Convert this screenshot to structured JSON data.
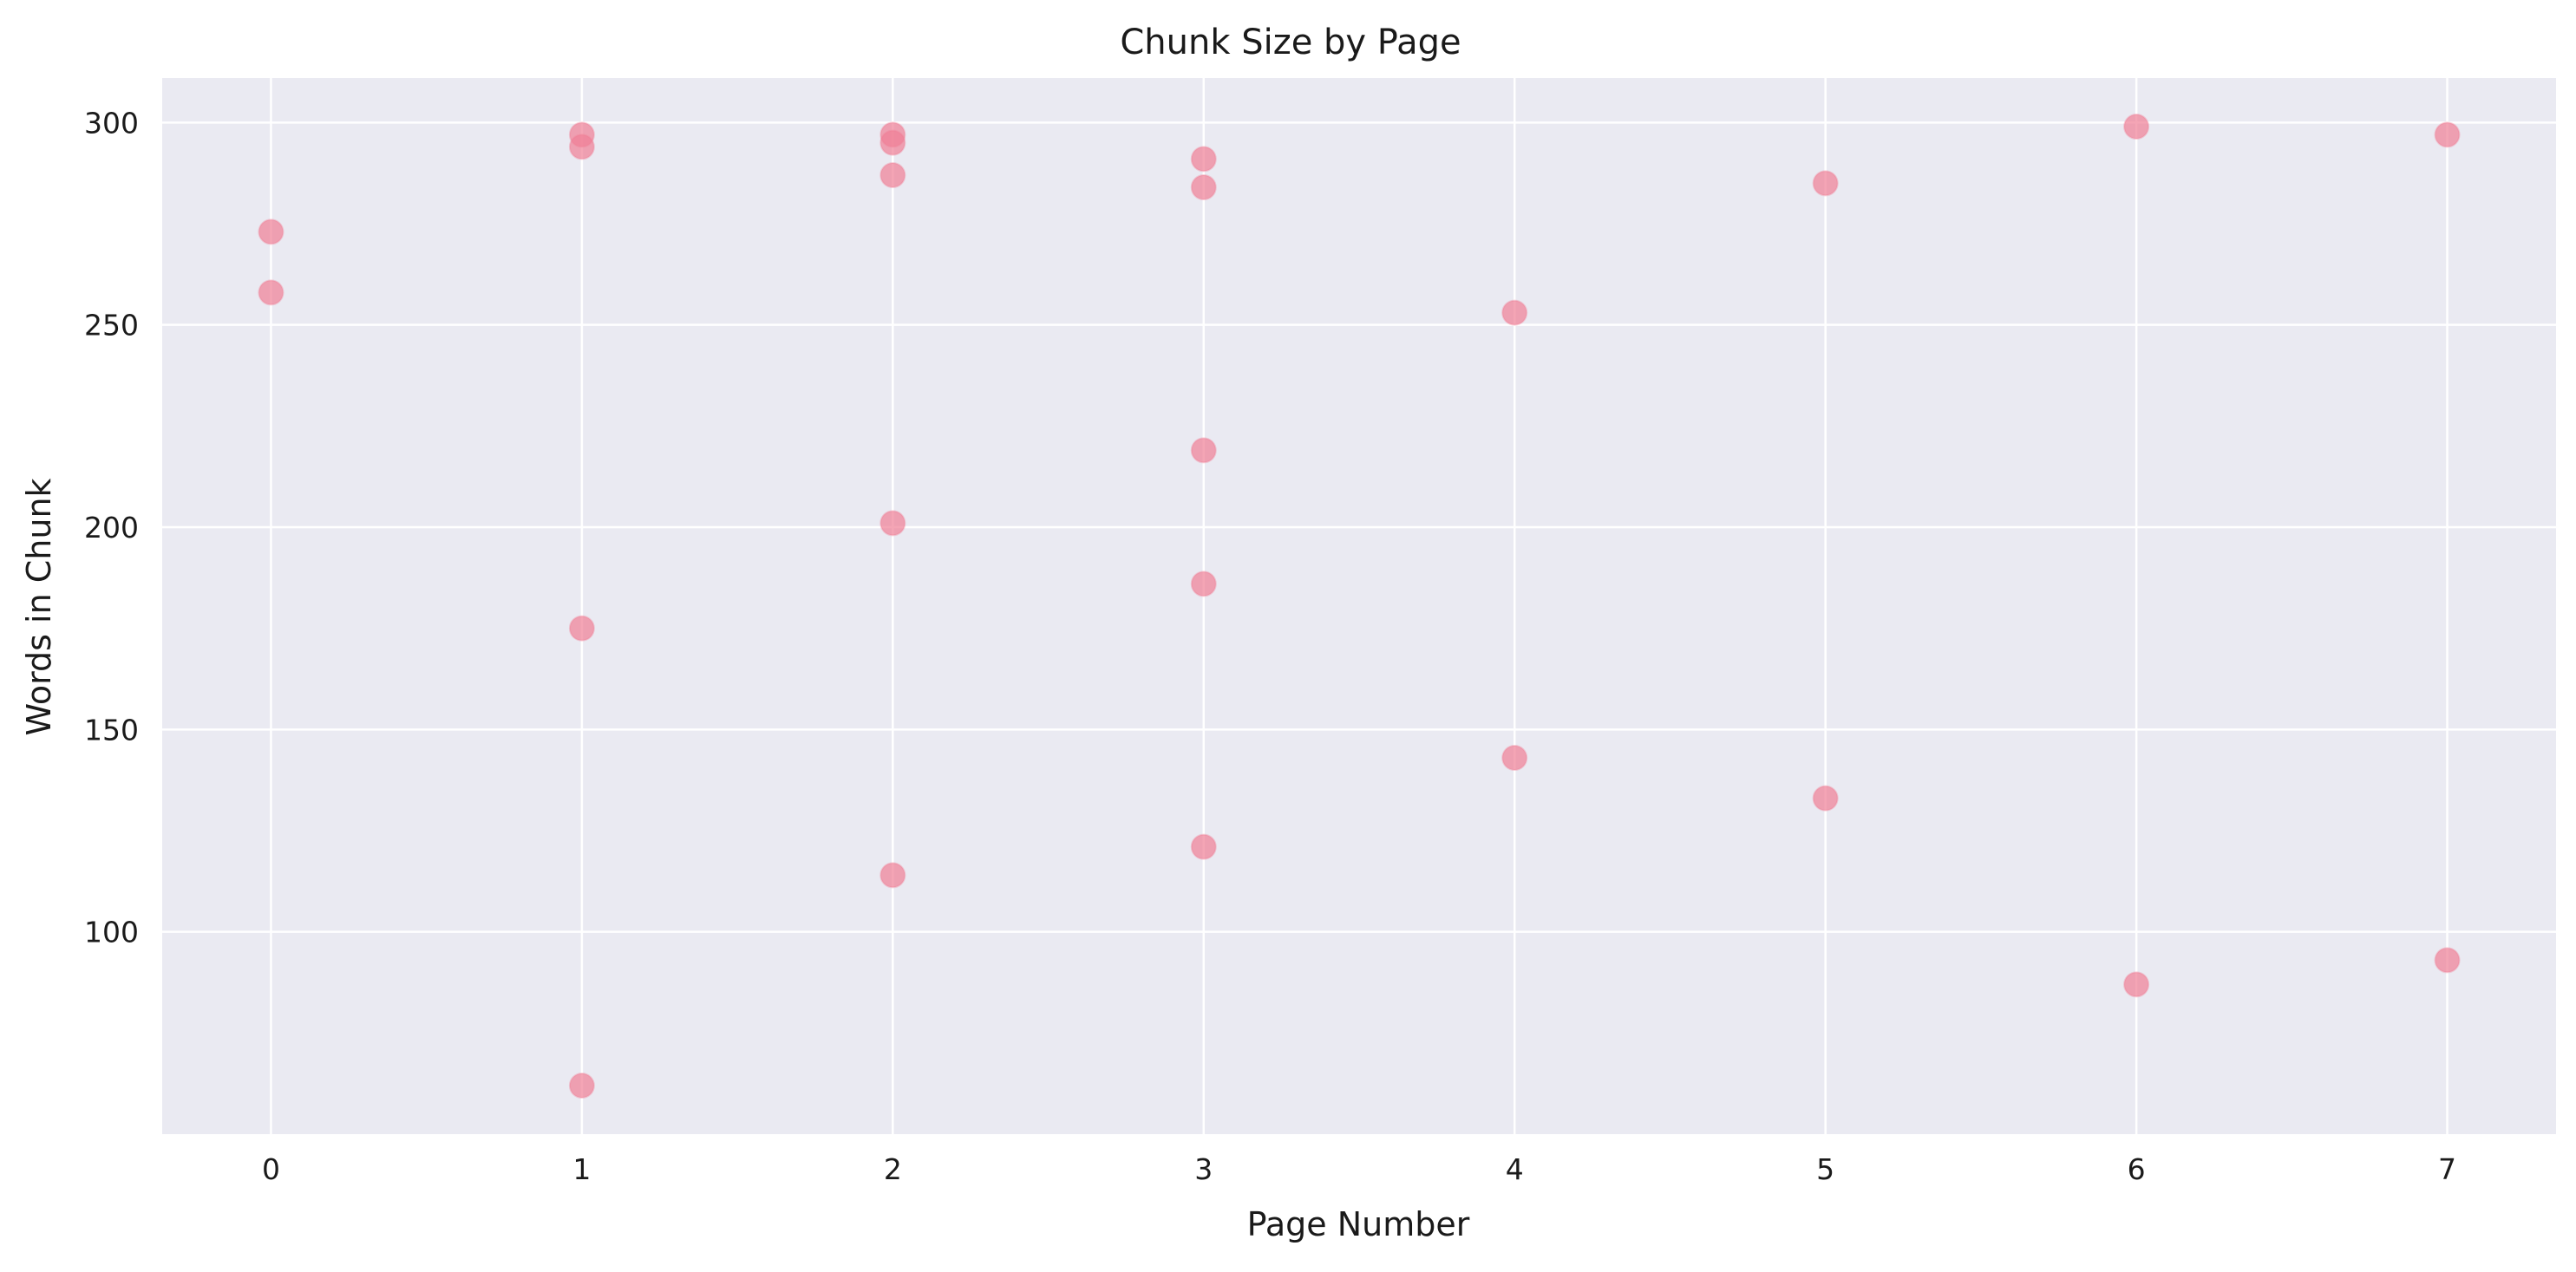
{
  "chart_data": {
    "type": "scatter",
    "title": "Chunk Size by Page",
    "xlabel": "Page Number",
    "ylabel": "Words in Chunk",
    "xlim": [
      -0.35,
      7.35
    ],
    "ylim": [
      50,
      311
    ],
    "xticks": [
      0,
      1,
      2,
      3,
      4,
      5,
      6,
      7
    ],
    "yticks": [
      100,
      150,
      200,
      250,
      300
    ],
    "grid": true,
    "colors": {
      "background": "#eaeaf2",
      "point": "#f07f95",
      "grid": "#ffffff"
    },
    "points": [
      {
        "x": 0,
        "y": 273
      },
      {
        "x": 0,
        "y": 258
      },
      {
        "x": 1,
        "y": 297
      },
      {
        "x": 1,
        "y": 294
      },
      {
        "x": 1,
        "y": 175
      },
      {
        "x": 1,
        "y": 62
      },
      {
        "x": 2,
        "y": 297
      },
      {
        "x": 2,
        "y": 295
      },
      {
        "x": 2,
        "y": 287
      },
      {
        "x": 2,
        "y": 201
      },
      {
        "x": 2,
        "y": 114
      },
      {
        "x": 3,
        "y": 291
      },
      {
        "x": 3,
        "y": 284
      },
      {
        "x": 3,
        "y": 219
      },
      {
        "x": 3,
        "y": 186
      },
      {
        "x": 3,
        "y": 121
      },
      {
        "x": 4,
        "y": 253
      },
      {
        "x": 4,
        "y": 143
      },
      {
        "x": 5,
        "y": 285
      },
      {
        "x": 5,
        "y": 133
      },
      {
        "x": 6,
        "y": 299
      },
      {
        "x": 6,
        "y": 87
      },
      {
        "x": 7,
        "y": 297
      },
      {
        "x": 7,
        "y": 93
      }
    ]
  }
}
